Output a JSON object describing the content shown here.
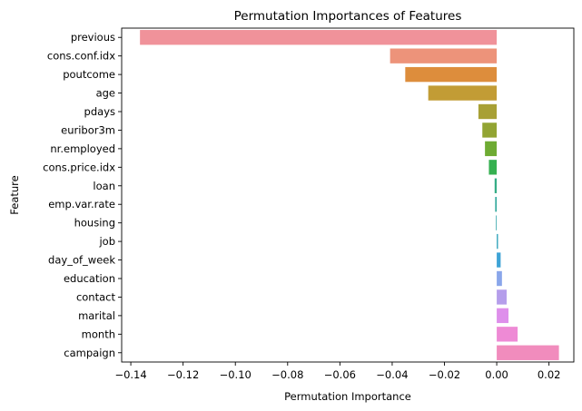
{
  "chart_data": {
    "type": "bar",
    "orientation": "horizontal",
    "title": "Permutation Importances of Features",
    "xlabel": "Permutation Importance",
    "ylabel": "Feature",
    "xlim": [
      -0.1435,
      0.0295
    ],
    "xticks": [
      -0.14,
      -0.12,
      -0.1,
      -0.08,
      -0.06,
      -0.04,
      -0.02,
      0.0,
      0.02
    ],
    "xtick_labels": [
      "−0.14",
      "−0.12",
      "−0.10",
      "−0.08",
      "−0.06",
      "−0.04",
      "−0.02",
      "0.00",
      "0.02"
    ],
    "grid": false,
    "legend": "none",
    "categories": [
      "previous",
      "cons.conf.idx",
      "poutcome",
      "age",
      "pdays",
      "euribor3m",
      "nr.employed",
      "cons.price.idx",
      "loan",
      "emp.var.rate",
      "housing",
      "job",
      "day_of_week",
      "education",
      "contact",
      "marital",
      "month",
      "campaign"
    ],
    "values": [
      -0.1365,
      -0.0408,
      -0.035,
      -0.0262,
      -0.007,
      -0.0055,
      -0.0045,
      -0.003,
      -0.0008,
      -0.0006,
      -0.0003,
      0.0005,
      0.0015,
      0.002,
      0.0038,
      0.0045,
      0.008,
      0.0238
    ],
    "colors": [
      "#f0929a",
      "#ed937a",
      "#dd8d3c",
      "#c29c35",
      "#a8a035",
      "#92a433",
      "#6eab33",
      "#35b050",
      "#35ad86",
      "#36aa9e",
      "#37a8ad",
      "#39a6bd",
      "#3ea3d6",
      "#8aa6ea",
      "#b59eeb",
      "#de8feb",
      "#ee8ad5",
      "#f18cbd"
    ]
  }
}
